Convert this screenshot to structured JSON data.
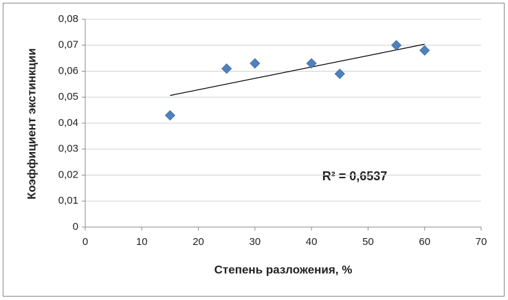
{
  "chart_data": {
    "type": "scatter",
    "x_label": "Степень разложения,  %",
    "y_label": "Коэффициент экстинкции",
    "annotation": "R² = 0,6537",
    "trendline": "linear",
    "color": "#4f81bd",
    "grid": true,
    "x": [
      15,
      25,
      30,
      40,
      45,
      55,
      60
    ],
    "values": [
      0.043,
      0.061,
      0.063,
      0.063,
      0.059,
      0.07,
      0.068
    ],
    "xlim": [
      0,
      70
    ],
    "xticks": [
      0,
      10,
      20,
      30,
      40,
      50,
      60,
      70
    ],
    "ylim": [
      0,
      0.08
    ],
    "yticks": [
      0,
      {
        "value": 0.01,
        "label": "0,01"
      },
      {
        "value": 0.02,
        "label": "0,02"
      },
      {
        "value": 0.03,
        "label": "0,03"
      },
      {
        "value": 0.04,
        "label": "0,04"
      },
      {
        "value": 0.05,
        "label": "0,05"
      },
      {
        "value": 0.06,
        "label": "0,06"
      },
      {
        "value": 0.07,
        "label": "0,07"
      },
      {
        "value": 0.08,
        "label": "0,08"
      }
    ]
  }
}
